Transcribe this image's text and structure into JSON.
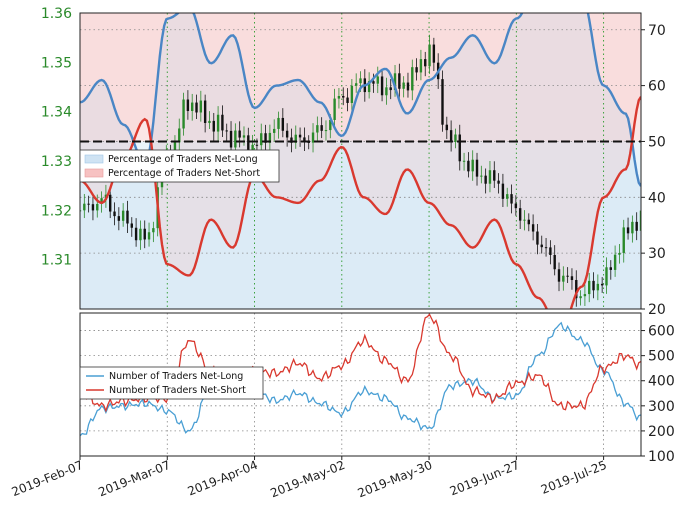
{
  "chart_data": [
    {
      "type": "line",
      "panel": "sentiment-top",
      "x": [
        "2019-02-07",
        "2019-02-14",
        "2019-02-21",
        "2019-02-28",
        "2019-03-07",
        "2019-03-14",
        "2019-03-21",
        "2019-03-28",
        "2019-04-04",
        "2019-04-11",
        "2019-04-18",
        "2019-04-25",
        "2019-05-02",
        "2019-05-09",
        "2019-05-16",
        "2019-05-23",
        "2019-05-30",
        "2019-06-06",
        "2019-06-13",
        "2019-06-20",
        "2019-06-27",
        "2019-07-04",
        "2019-07-11",
        "2019-07-18",
        "2019-07-25",
        "2019-08-01",
        "2019-08-06"
      ],
      "series": [
        {
          "name": "Percentage of Traders Net-Long",
          "color": "#4a86c5",
          "values": [
            57,
            61,
            53,
            46,
            72,
            74,
            64,
            69,
            56,
            60,
            61,
            57,
            51,
            60,
            63,
            55,
            61,
            65,
            69,
            64,
            72,
            78,
            84,
            76,
            60,
            55,
            42
          ]
        },
        {
          "name": "Percentage of Traders Net-Short",
          "color": "#d9392f",
          "values": [
            43,
            39,
            47,
            54,
            28,
            26,
            36,
            31,
            44,
            40,
            39,
            43,
            49,
            40,
            37,
            45,
            39,
            35,
            31,
            36,
            28,
            22,
            16,
            24,
            40,
            45,
            58
          ]
        }
      ],
      "overlay_close": [
        1.32,
        1.322,
        1.318,
        1.314,
        1.33,
        1.342,
        1.338,
        1.335,
        1.333,
        1.337,
        1.334,
        1.336,
        1.343,
        1.346,
        1.345,
        1.346,
        1.352,
        1.334,
        1.328,
        1.326,
        1.32,
        1.314,
        1.307,
        1.303,
        1.306,
        1.315,
        1.319
      ],
      "ylim_left": [
        1.3,
        1.36
      ],
      "ylim_right": [
        20,
        73
      ],
      "yticks_left": [
        "1.31",
        "1.32",
        "1.33",
        "1.34",
        "1.35",
        "1.36"
      ],
      "yticks_right": [
        "20",
        "30",
        "40",
        "50",
        "60",
        "70"
      ],
      "reference_line": 50,
      "legend_position": "left"
    },
    {
      "type": "line",
      "panel": "positions-bottom",
      "x": [
        "2019-02-07",
        "2019-02-14",
        "2019-02-21",
        "2019-02-28",
        "2019-03-07",
        "2019-03-14",
        "2019-03-21",
        "2019-03-28",
        "2019-04-04",
        "2019-04-11",
        "2019-04-18",
        "2019-04-25",
        "2019-05-02",
        "2019-05-09",
        "2019-05-16",
        "2019-05-23",
        "2019-05-30",
        "2019-06-06",
        "2019-06-13",
        "2019-06-20",
        "2019-06-27",
        "2019-07-04",
        "2019-07-11",
        "2019-07-18",
        "2019-07-25",
        "2019-08-01",
        "2019-08-06"
      ],
      "series": [
        {
          "name": "Number of Traders Net-Long",
          "color": "#4a9fd4",
          "values": [
            180,
            290,
            300,
            310,
            280,
            200,
            370,
            380,
            360,
            320,
            350,
            310,
            270,
            360,
            330,
            250,
            210,
            380,
            400,
            330,
            340,
            500,
            620,
            560,
            440,
            310,
            250
          ]
        },
        {
          "name": "Number of Traders Net-Short",
          "color": "#d9392f",
          "values": [
            360,
            300,
            320,
            330,
            330,
            560,
            440,
            390,
            440,
            430,
            470,
            410,
            460,
            560,
            480,
            400,
            660,
            500,
            360,
            330,
            390,
            420,
            300,
            300,
            450,
            500,
            460
          ]
        }
      ],
      "ylim": [
        100,
        670
      ],
      "yticks": [
        "100",
        "200",
        "300",
        "400",
        "500",
        "600"
      ],
      "xticks": [
        "2019-Feb-07",
        "2019-Mar-07",
        "2019-Apr-04",
        "2019-May-02",
        "2019-May-30",
        "2019-Jun-27",
        "2019-Jul-25"
      ],
      "legend_position": "left"
    }
  ]
}
